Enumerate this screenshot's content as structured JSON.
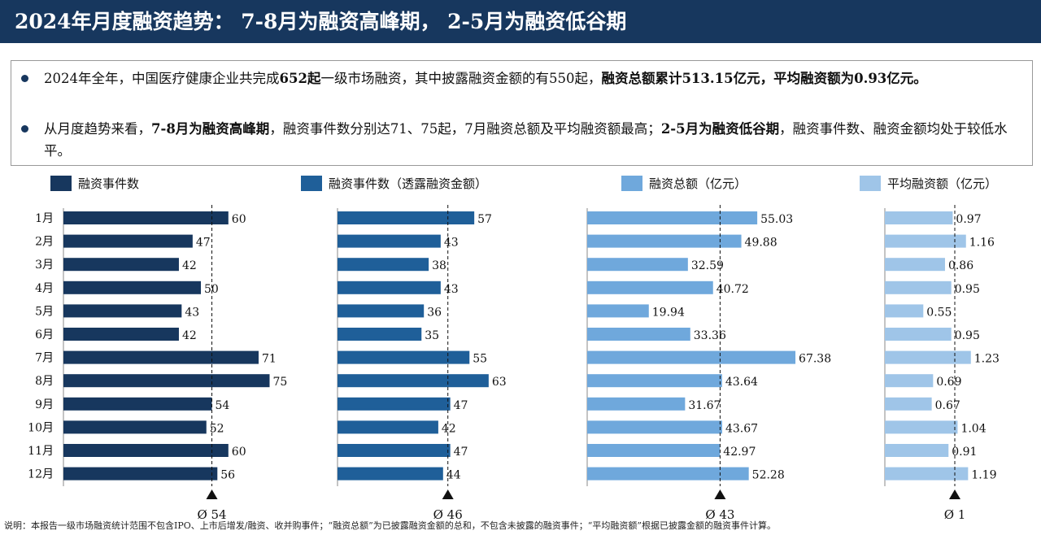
{
  "title": "2024年月度融资趋势： 7-8月为融资高峰期， 2-5月为融资低谷期",
  "summary": {
    "bullet1": {
      "p1": "2024年全年，中国医疗健康企业共完成",
      "b1": "652起",
      "p2": "一级市场融资，其中披露融资金额的有550起，",
      "b2": "融资总额累计513.15亿元，平均融资额为0.93亿元。"
    },
    "bullet2": {
      "p1": "从月度趋势来看，",
      "b1": "7-8月为融资高峰期",
      "p2": "，融资事件数分别达71、75起，7月融资总额及平均融资额最高；",
      "b2": "2-5月为融资低谷期",
      "p3": "，融资事件数、融资金额均处于较低水平。"
    }
  },
  "chart_data": {
    "type": "bar",
    "orientation": "horizontal",
    "categories": [
      "1月",
      "2月",
      "3月",
      "4月",
      "5月",
      "6月",
      "7月",
      "8月",
      "9月",
      "10月",
      "11月",
      "12月"
    ],
    "series": [
      {
        "name": "融资事件数",
        "color": "#17375e",
        "values": [
          60,
          47,
          42,
          50,
          43,
          42,
          71,
          75,
          54,
          52,
          60,
          56
        ],
        "labels": [
          "60",
          "47",
          "42",
          "50",
          "43",
          "42",
          "71",
          "75",
          "54",
          "52",
          "60",
          "56"
        ],
        "average": 54,
        "average_label": "Ø 54"
      },
      {
        "name": "融资事件数（透露融资金额）",
        "color": "#1f5f99",
        "values": [
          57,
          43,
          38,
          43,
          36,
          35,
          55,
          63,
          47,
          42,
          47,
          44
        ],
        "labels": [
          "57",
          "43",
          "38",
          "43",
          "36",
          "35",
          "55",
          "63",
          "47",
          "42",
          "47",
          "44"
        ],
        "average": 46,
        "average_label": "Ø 46"
      },
      {
        "name": "融资总额（亿元）",
        "color": "#6fa8dc",
        "values": [
          55.03,
          49.88,
          32.59,
          40.72,
          19.94,
          33.36,
          67.38,
          43.64,
          31.67,
          43.67,
          42.97,
          52.28
        ],
        "labels": [
          "55.03",
          "49.88",
          "32.59",
          "40.72",
          "19.94",
          "33.36",
          "67.38",
          "43.64",
          "31.67",
          "43.67",
          "42.97",
          "52.28"
        ],
        "average": 43,
        "average_label": "Ø 43"
      },
      {
        "name": "平均融资额（亿元）",
        "color": "#9fc5e8",
        "values": [
          0.97,
          1.16,
          0.86,
          0.95,
          0.55,
          0.95,
          1.23,
          0.69,
          0.67,
          1.04,
          0.91,
          1.19
        ],
        "labels": [
          "0.97",
          "1.16",
          "0.86",
          "0.95",
          "0.55",
          "0.95",
          "1.23",
          "0.69",
          "0.67",
          "1.04",
          "0.91",
          "1.19"
        ],
        "average": 1,
        "average_label": "Ø 1"
      }
    ]
  },
  "footnote": "说明：本报告一级市场融资统计范围不包含IPO、上市后增发/融资、收并购事件；“融资总额”为已披露融资金额的总和，不包含未披露的融资事件；“平均融资额”根据已披露金额的融资事件计算。"
}
